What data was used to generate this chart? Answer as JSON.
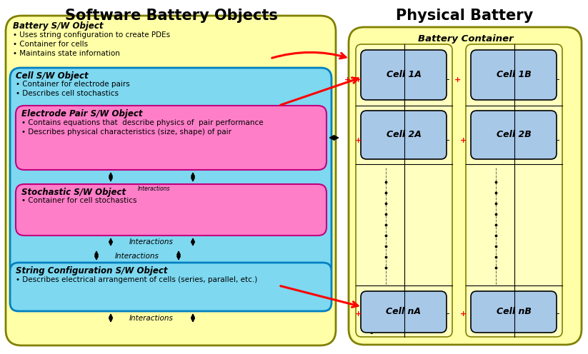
{
  "title_left": "Software Battery Objects",
  "title_right": "Physical Battery",
  "battery_sw_title": "Battery S/W Object",
  "battery_sw_bullets": [
    "• Uses string configuration to create PDEs",
    "• Container for cells",
    "• Maintains state infornation"
  ],
  "cell_sw_title": "Cell S/W Object",
  "cell_sw_bullets": [
    "• Container for electrode pairs",
    "• Describes cell stochastics"
  ],
  "electrode_sw_title": "Electrode Pair S/W Object",
  "electrode_sw_bullets": [
    "• Contains equations that  describe physics of  pair performance",
    "• Describes physical characteristics (size, shape) of pair"
  ],
  "stochastic_sw_title": "Stochastic S/W Object",
  "stochastic_sw_super": "Interactions",
  "stochastic_sw_bullets": [
    "• Container for cell stochastics"
  ],
  "string_sw_title": "String Configuration S/W Object",
  "string_sw_bullets": [
    "• Describes electrical arrangement of cells (series, parallel, etc.)"
  ],
  "interactions_label": "Interactions",
  "battery_container_label": "Battery Container",
  "cell_labels": [
    "Cell 1A",
    "Cell 1B",
    "Cell 2A",
    "Cell 2B",
    "Cell nA",
    "Cell nB"
  ],
  "yellow_outer": "#FFFFA8",
  "yellow_cell_col": "#FFFFC8",
  "cyan_box": "#7DD8F0",
  "pink_box": "#FF7EC8",
  "blue_cell": "#A8C8E8",
  "edge_dark": "#808000",
  "edge_cyan": "#0080C0",
  "edge_pink": "#C00080"
}
